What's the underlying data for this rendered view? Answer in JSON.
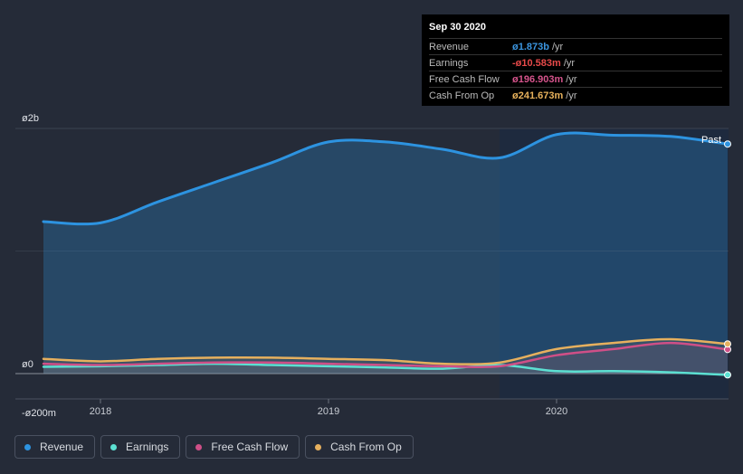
{
  "tooltip": {
    "date": "Sep 30 2020",
    "rows": [
      {
        "label": "Revenue",
        "value": "ø1.873b",
        "unit": "/yr",
        "color": "#3b95df"
      },
      {
        "label": "Earnings",
        "value": "-ø10.583m",
        "unit": "/yr",
        "color": "#e84a4a"
      },
      {
        "label": "Free Cash Flow",
        "value": "ø196.903m",
        "unit": "/yr",
        "color": "#d6548c"
      },
      {
        "label": "Cash From Op",
        "value": "ø241.673m",
        "unit": "/yr",
        "color": "#e8b25c"
      }
    ]
  },
  "past_label": "Past",
  "legend": [
    {
      "label": "Revenue",
      "color": "#2d93e0"
    },
    {
      "label": "Earnings",
      "color": "#5ce0d2"
    },
    {
      "label": "Free Cash Flow",
      "color": "#cf4f87"
    },
    {
      "label": "Cash From Op",
      "color": "#e6b05e"
    }
  ],
  "chart_data": {
    "type": "area",
    "y_tick_labels": [
      "ø2b",
      "ø0",
      "-ø200m"
    ],
    "y_ticks": [
      2000,
      0,
      -200
    ],
    "ylim": [
      -200,
      2000
    ],
    "xlim": [
      2017.55,
      2020.75
    ],
    "x_tick_labels": [
      "2018",
      "2019",
      "2020"
    ],
    "x_ticks": [
      2018,
      2019,
      2020
    ],
    "highlight_from": 2019.75,
    "series": [
      {
        "name": "Revenue",
        "color": "#2d93e0",
        "x": [
          2017.75,
          2018.0,
          2018.25,
          2018.5,
          2018.75,
          2019.0,
          2019.25,
          2019.5,
          2019.75,
          2020.0,
          2020.25,
          2020.5,
          2020.75
        ],
        "y": [
          1240,
          1230,
          1400,
          1560,
          1720,
          1890,
          1890,
          1830,
          1760,
          1950,
          1945,
          1935,
          1873
        ]
      },
      {
        "name": "Earnings",
        "color": "#5ce0d2",
        "x": [
          2017.75,
          2018.0,
          2018.25,
          2018.5,
          2018.75,
          2019.0,
          2019.25,
          2019.5,
          2019.75,
          2020.0,
          2020.25,
          2020.5,
          2020.75
        ],
        "y": [
          55,
          60,
          70,
          80,
          70,
          60,
          50,
          40,
          70,
          20,
          20,
          10,
          -10.583
        ]
      },
      {
        "name": "Free Cash Flow",
        "color": "#cf4f87",
        "x": [
          2017.75,
          2018.0,
          2018.25,
          2018.5,
          2018.75,
          2019.0,
          2019.25,
          2019.5,
          2019.75,
          2020.0,
          2020.25,
          2020.5,
          2020.75
        ],
        "y": [
          80,
          70,
          80,
          90,
          90,
          80,
          70,
          60,
          60,
          150,
          200,
          250,
          196.903
        ]
      },
      {
        "name": "Cash From Op",
        "color": "#e6b05e",
        "x": [
          2017.75,
          2018.0,
          2018.25,
          2018.5,
          2018.75,
          2019.0,
          2019.25,
          2019.5,
          2019.75,
          2020.0,
          2020.25,
          2020.5,
          2020.75
        ],
        "y": [
          120,
          100,
          120,
          130,
          130,
          120,
          110,
          80,
          90,
          200,
          250,
          280,
          241.673
        ]
      }
    ]
  }
}
